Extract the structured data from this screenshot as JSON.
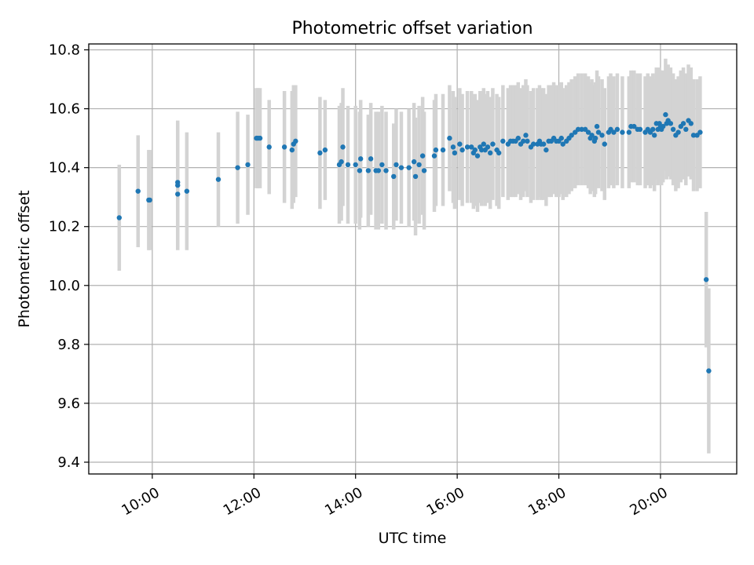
{
  "chart_data": {
    "type": "scatter",
    "title": "Photometric offset variation",
    "xlabel": "UTC time",
    "ylabel": "Photometric offset",
    "grid": true,
    "x_unit": "hours",
    "xlim": [
      8.75,
      21.5
    ],
    "ylim": [
      9.36,
      10.82
    ],
    "xticks": [
      10,
      12,
      14,
      16,
      18,
      20
    ],
    "xtick_labels": [
      "10:00",
      "12:00",
      "14:00",
      "16:00",
      "18:00",
      "20:00"
    ],
    "yticks": [
      9.4,
      9.6,
      9.8,
      10.0,
      10.2,
      10.4,
      10.6,
      10.8
    ],
    "ytick_labels": [
      "9.4",
      "9.6",
      "9.8",
      "10.0",
      "10.2",
      "10.4",
      "10.6",
      "10.8"
    ],
    "colors": {
      "point": "#1f77b4",
      "errorbar": "#d3d3d3",
      "grid": "#b0b0b0",
      "axis": "#000000"
    },
    "series": [
      {
        "name": "offset",
        "points": [
          [
            9.35,
            10.23,
            0.18
          ],
          [
            9.72,
            10.32,
            0.19
          ],
          [
            9.93,
            10.29,
            0.17
          ],
          [
            9.95,
            10.29,
            0.17
          ],
          [
            10.5,
            10.35,
            0.21
          ],
          [
            10.5,
            10.34,
            0.21
          ],
          [
            10.5,
            10.31,
            0.19
          ],
          [
            10.68,
            10.32,
            0.2
          ],
          [
            11.3,
            10.36,
            0.16
          ],
          [
            11.68,
            10.4,
            0.19
          ],
          [
            11.88,
            10.41,
            0.17
          ],
          [
            12.05,
            10.5,
            0.17
          ],
          [
            12.08,
            10.5,
            0.17
          ],
          [
            12.12,
            10.5,
            0.17
          ],
          [
            12.3,
            10.47,
            0.16
          ],
          [
            12.6,
            10.47,
            0.19
          ],
          [
            12.75,
            10.46,
            0.2
          ],
          [
            12.78,
            10.48,
            0.2
          ],
          [
            12.82,
            10.49,
            0.19
          ],
          [
            13.3,
            10.45,
            0.19
          ],
          [
            13.4,
            10.46,
            0.17
          ],
          [
            13.68,
            10.41,
            0.2
          ],
          [
            13.72,
            10.42,
            0.2
          ],
          [
            13.75,
            10.47,
            0.2
          ],
          [
            13.85,
            10.41,
            0.2
          ],
          [
            14.0,
            10.41,
            0.2
          ],
          [
            14.08,
            10.39,
            0.2
          ],
          [
            14.1,
            10.43,
            0.2
          ],
          [
            14.25,
            10.39,
            0.19
          ],
          [
            14.3,
            10.43,
            0.19
          ],
          [
            14.4,
            10.39,
            0.2
          ],
          [
            14.45,
            10.39,
            0.2
          ],
          [
            14.52,
            10.41,
            0.2
          ],
          [
            14.6,
            10.39,
            0.2
          ],
          [
            14.75,
            10.37,
            0.18
          ],
          [
            14.8,
            10.41,
            0.19
          ],
          [
            14.9,
            10.4,
            0.19
          ],
          [
            15.05,
            10.4,
            0.2
          ],
          [
            15.15,
            10.42,
            0.2
          ],
          [
            15.18,
            10.37,
            0.2
          ],
          [
            15.25,
            10.41,
            0.2
          ],
          [
            15.32,
            10.44,
            0.2
          ],
          [
            15.35,
            10.39,
            0.2
          ],
          [
            15.55,
            10.44,
            0.19
          ],
          [
            15.58,
            10.46,
            0.19
          ],
          [
            15.72,
            10.46,
            0.19
          ],
          [
            15.85,
            10.5,
            0.18
          ],
          [
            15.92,
            10.47,
            0.19
          ],
          [
            15.95,
            10.45,
            0.19
          ],
          [
            16.05,
            10.48,
            0.19
          ],
          [
            16.1,
            10.46,
            0.19
          ],
          [
            16.2,
            10.47,
            0.19
          ],
          [
            16.28,
            10.47,
            0.19
          ],
          [
            16.32,
            10.45,
            0.19
          ],
          [
            16.35,
            10.46,
            0.19
          ],
          [
            16.4,
            10.44,
            0.19
          ],
          [
            16.45,
            10.47,
            0.19
          ],
          [
            16.48,
            10.46,
            0.19
          ],
          [
            16.52,
            10.48,
            0.19
          ],
          [
            16.55,
            10.46,
            0.19
          ],
          [
            16.6,
            10.47,
            0.19
          ],
          [
            16.65,
            10.45,
            0.19
          ],
          [
            16.7,
            10.48,
            0.19
          ],
          [
            16.78,
            10.46,
            0.19
          ],
          [
            16.82,
            10.45,
            0.19
          ],
          [
            16.9,
            10.49,
            0.19
          ],
          [
            17.0,
            10.48,
            0.19
          ],
          [
            17.05,
            10.49,
            0.19
          ],
          [
            17.1,
            10.49,
            0.19
          ],
          [
            17.15,
            10.49,
            0.19
          ],
          [
            17.2,
            10.5,
            0.19
          ],
          [
            17.25,
            10.48,
            0.19
          ],
          [
            17.3,
            10.49,
            0.19
          ],
          [
            17.35,
            10.51,
            0.19
          ],
          [
            17.38,
            10.49,
            0.19
          ],
          [
            17.45,
            10.47,
            0.19
          ],
          [
            17.5,
            10.48,
            0.19
          ],
          [
            17.58,
            10.48,
            0.19
          ],
          [
            17.62,
            10.49,
            0.19
          ],
          [
            17.65,
            10.48,
            0.19
          ],
          [
            17.7,
            10.48,
            0.19
          ],
          [
            17.75,
            10.46,
            0.19
          ],
          [
            17.8,
            10.49,
            0.19
          ],
          [
            17.85,
            10.49,
            0.19
          ],
          [
            17.9,
            10.5,
            0.19
          ],
          [
            17.95,
            10.49,
            0.19
          ],
          [
            18.0,
            10.49,
            0.19
          ],
          [
            18.05,
            10.5,
            0.19
          ],
          [
            18.08,
            10.48,
            0.19
          ],
          [
            18.15,
            10.49,
            0.19
          ],
          [
            18.2,
            10.5,
            0.19
          ],
          [
            18.25,
            10.51,
            0.19
          ],
          [
            18.32,
            10.52,
            0.19
          ],
          [
            18.38,
            10.53,
            0.19
          ],
          [
            18.45,
            10.53,
            0.19
          ],
          [
            18.52,
            10.53,
            0.19
          ],
          [
            18.58,
            10.52,
            0.19
          ],
          [
            18.62,
            10.5,
            0.19
          ],
          [
            18.65,
            10.51,
            0.19
          ],
          [
            18.7,
            10.49,
            0.19
          ],
          [
            18.72,
            10.5,
            0.19
          ],
          [
            18.75,
            10.54,
            0.19
          ],
          [
            18.78,
            10.52,
            0.19
          ],
          [
            18.85,
            10.51,
            0.19
          ],
          [
            18.9,
            10.48,
            0.19
          ],
          [
            18.98,
            10.52,
            0.19
          ],
          [
            19.02,
            10.53,
            0.19
          ],
          [
            19.08,
            10.52,
            0.19
          ],
          [
            19.15,
            10.53,
            0.19
          ],
          [
            19.25,
            10.52,
            0.19
          ],
          [
            19.38,
            10.52,
            0.19
          ],
          [
            19.42,
            10.54,
            0.19
          ],
          [
            19.48,
            10.54,
            0.19
          ],
          [
            19.55,
            10.53,
            0.19
          ],
          [
            19.6,
            10.53,
            0.19
          ],
          [
            19.7,
            10.52,
            0.19
          ],
          [
            19.75,
            10.53,
            0.19
          ],
          [
            19.8,
            10.52,
            0.19
          ],
          [
            19.85,
            10.53,
            0.19
          ],
          [
            19.88,
            10.51,
            0.19
          ],
          [
            19.92,
            10.55,
            0.19
          ],
          [
            19.95,
            10.53,
            0.19
          ],
          [
            19.98,
            10.55,
            0.19
          ],
          [
            20.0,
            10.54,
            0.19
          ],
          [
            20.02,
            10.53,
            0.19
          ],
          [
            20.05,
            10.54,
            0.19
          ],
          [
            20.1,
            10.58,
            0.19
          ],
          [
            20.12,
            10.55,
            0.19
          ],
          [
            20.15,
            10.56,
            0.19
          ],
          [
            20.2,
            10.55,
            0.19
          ],
          [
            20.25,
            10.53,
            0.19
          ],
          [
            20.3,
            10.51,
            0.19
          ],
          [
            20.35,
            10.52,
            0.19
          ],
          [
            20.4,
            10.54,
            0.19
          ],
          [
            20.45,
            10.55,
            0.19
          ],
          [
            20.5,
            10.53,
            0.19
          ],
          [
            20.55,
            10.56,
            0.19
          ],
          [
            20.6,
            10.55,
            0.19
          ],
          [
            20.65,
            10.51,
            0.19
          ],
          [
            20.72,
            10.51,
            0.19
          ],
          [
            20.78,
            10.52,
            0.19
          ],
          [
            20.9,
            10.02,
            0.23
          ],
          [
            20.95,
            9.71,
            0.28
          ]
        ]
      }
    ]
  }
}
